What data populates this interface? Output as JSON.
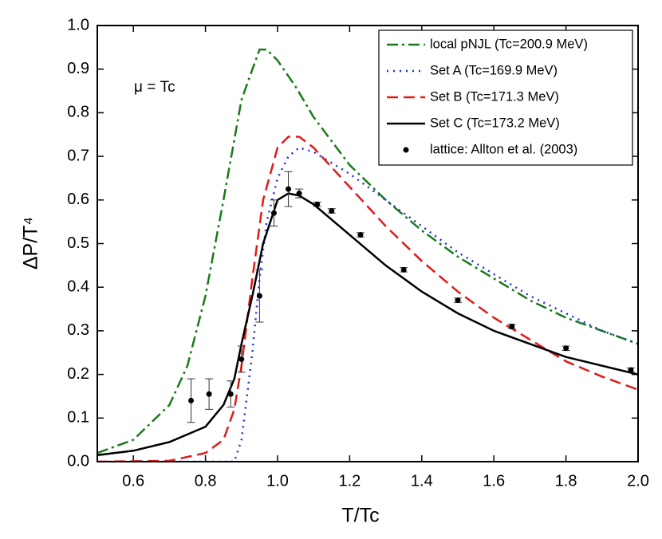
{
  "chart_data": {
    "type": "line",
    "xlabel": "T/Tc",
    "ylabel": "ΔP/T⁴",
    "annotation": "μ = Tc",
    "xlim": [
      0.5,
      2.0
    ],
    "xticks": [
      0.6,
      0.8,
      {
        "value": 1,
        "label": "1.0"
      },
      1.2,
      1.4,
      1.6,
      1.8,
      {
        "value": 2,
        "label": "2.0"
      }
    ],
    "ylim": [
      0,
      1
    ],
    "yticks": [
      {
        "value": 0,
        "label": "0.0"
      },
      0.1,
      0.2,
      0.3,
      0.4,
      0.5,
      0.6,
      0.7,
      0.8,
      0.9,
      {
        "value": 1,
        "label": "1.0"
      }
    ],
    "legend": "upper right",
    "series": [
      {
        "name": "local pNJL (Tc=200.9 MeV)",
        "color": "#1a7a1a",
        "style": "dashdot",
        "x": [
          0.5,
          0.6,
          0.7,
          0.75,
          0.8,
          0.85,
          0.9,
          0.95,
          0.97,
          1.0,
          1.05,
          1.1,
          1.2,
          1.3,
          1.4,
          1.5,
          1.6,
          1.7,
          1.8,
          1.9,
          2.0
        ],
        "values": [
          0.02,
          0.05,
          0.13,
          0.22,
          0.38,
          0.6,
          0.83,
          0.945,
          0.945,
          0.92,
          0.86,
          0.79,
          0.68,
          0.6,
          0.53,
          0.47,
          0.42,
          0.37,
          0.33,
          0.3,
          0.27
        ]
      },
      {
        "name": "Set A (Tc=169.9 MeV)",
        "color": "#1f2fd6",
        "style": "dotted",
        "x": [
          0.5,
          0.85,
          0.88,
          0.9,
          0.93,
          0.95,
          0.97,
          1.0,
          1.03,
          1.06,
          1.1,
          1.2,
          1.3,
          1.4,
          1.5,
          1.6,
          1.7,
          1.8,
          1.9,
          2.0
        ],
        "values": [
          0,
          0,
          0,
          0.05,
          0.25,
          0.42,
          0.55,
          0.65,
          0.7,
          0.72,
          0.71,
          0.66,
          0.6,
          0.54,
          0.48,
          0.43,
          0.38,
          0.34,
          0.3,
          0.27
        ]
      },
      {
        "name": "Set B (Tc=171.3 MeV)",
        "color": "#e01a1a",
        "style": "dashed",
        "x": [
          0.5,
          0.7,
          0.8,
          0.85,
          0.88,
          0.9,
          0.93,
          0.96,
          1.0,
          1.03,
          1.06,
          1.1,
          1.2,
          1.3,
          1.4,
          1.5,
          1.6,
          1.7,
          1.8,
          1.9,
          2.0
        ],
        "values": [
          0,
          0.002,
          0.02,
          0.05,
          0.12,
          0.22,
          0.42,
          0.6,
          0.72,
          0.745,
          0.745,
          0.72,
          0.63,
          0.54,
          0.46,
          0.39,
          0.33,
          0.28,
          0.23,
          0.195,
          0.165
        ]
      },
      {
        "name": "Set C (Tc=173.2 MeV)",
        "color": "#000000",
        "style": "solid",
        "x": [
          0.5,
          0.6,
          0.7,
          0.8,
          0.85,
          0.88,
          0.9,
          0.93,
          0.96,
          1.0,
          1.03,
          1.06,
          1.1,
          1.2,
          1.3,
          1.4,
          1.5,
          1.6,
          1.7,
          1.8,
          1.9,
          2.0
        ],
        "values": [
          0.015,
          0.025,
          0.045,
          0.08,
          0.13,
          0.19,
          0.27,
          0.38,
          0.5,
          0.6,
          0.615,
          0.61,
          0.59,
          0.52,
          0.45,
          0.39,
          0.34,
          0.3,
          0.27,
          0.24,
          0.22,
          0.2
        ]
      },
      {
        "name": "lattice: Allton et al. (2003)",
        "color": "#000000",
        "style": "points",
        "x": [
          0.76,
          0.81,
          0.87,
          0.9,
          0.95,
          0.99,
          1.03,
          1.06,
          1.11,
          1.15,
          1.23,
          1.35,
          1.5,
          1.65,
          1.8,
          1.98
        ],
        "values": [
          0.14,
          0.155,
          0.155,
          0.235,
          0.38,
          0.57,
          0.625,
          0.615,
          0.59,
          0.575,
          0.52,
          0.44,
          0.37,
          0.31,
          0.26,
          0.21
        ],
        "errors": [
          0.05,
          0.035,
          0.03,
          0.03,
          0.06,
          0.03,
          0.04,
          0.01,
          0.005,
          0.005,
          0.005,
          0.005,
          0.005,
          0.005,
          0.005,
          0.005
        ]
      }
    ]
  }
}
